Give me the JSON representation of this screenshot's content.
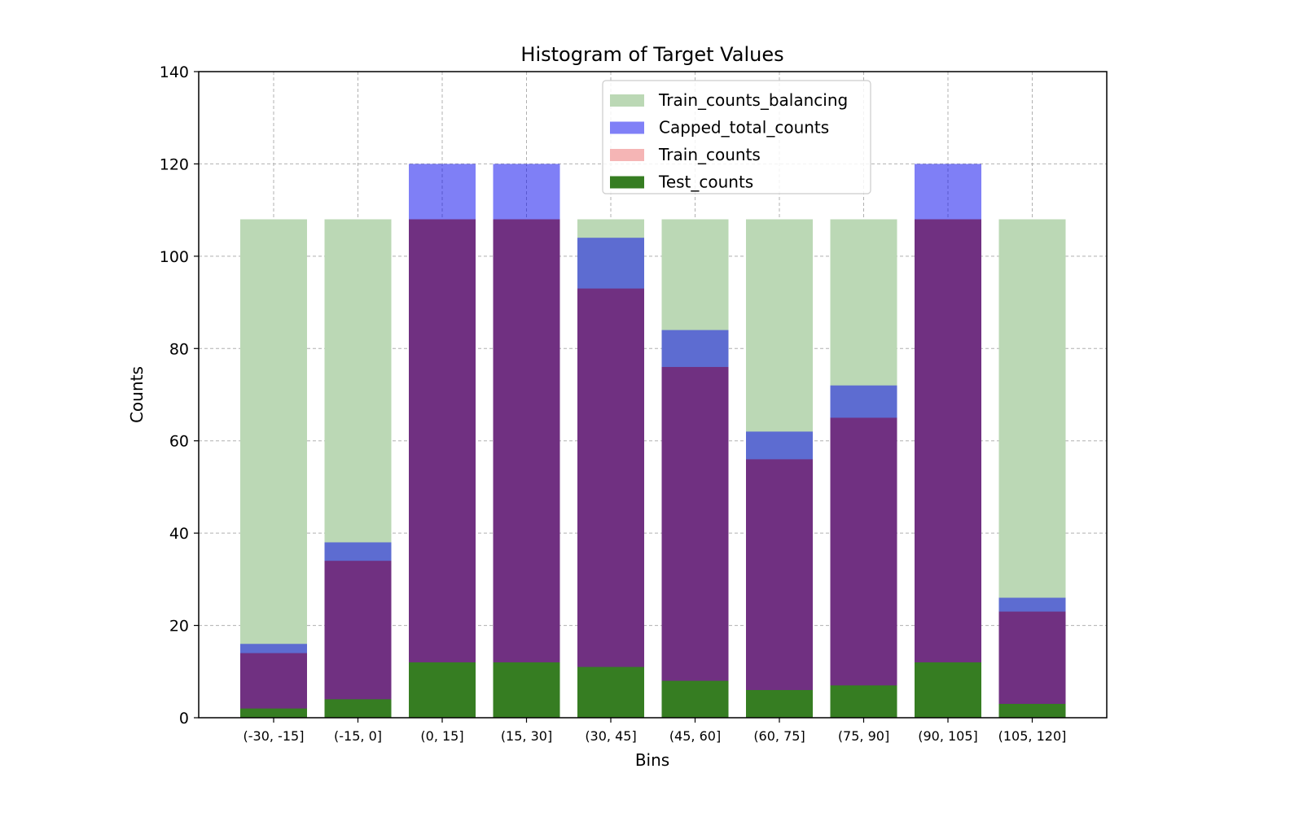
{
  "chart_data": {
    "type": "bar",
    "title": "Histogram of Target Values",
    "xlabel": "Bins",
    "ylabel": "Counts",
    "ylim": [
      0,
      140
    ],
    "yticks": [
      0,
      20,
      40,
      60,
      80,
      100,
      120,
      140
    ],
    "grid": true,
    "legend_position": "top-center",
    "categories": [
      "(-30, -15]",
      "(-15, 0]",
      "(0, 15]",
      "(15, 30]",
      "(30, 45]",
      "(45, 60]",
      "(60, 75]",
      "(75, 90]",
      "(90, 105]",
      "(105, 120]"
    ],
    "series": [
      {
        "name": "Train_counts_balancing",
        "color": "#bbd8b5",
        "values": [
          108,
          108,
          108,
          108,
          108,
          108,
          108,
          108,
          108,
          108
        ]
      },
      {
        "name": "Capped_total_counts",
        "color": "#7f7ff5",
        "values": [
          16,
          38,
          120,
          120,
          104,
          84,
          62,
          72,
          120,
          26
        ]
      },
      {
        "name": "Train_counts",
        "color": "#f5b5b5",
        "values": [
          14,
          34,
          108,
          108,
          93,
          76,
          56,
          65,
          108,
          23
        ]
      },
      {
        "name": "Test_counts",
        "color": "#367d22",
        "values": [
          2,
          4,
          12,
          12,
          11,
          8,
          6,
          7,
          12,
          3
        ]
      }
    ]
  }
}
